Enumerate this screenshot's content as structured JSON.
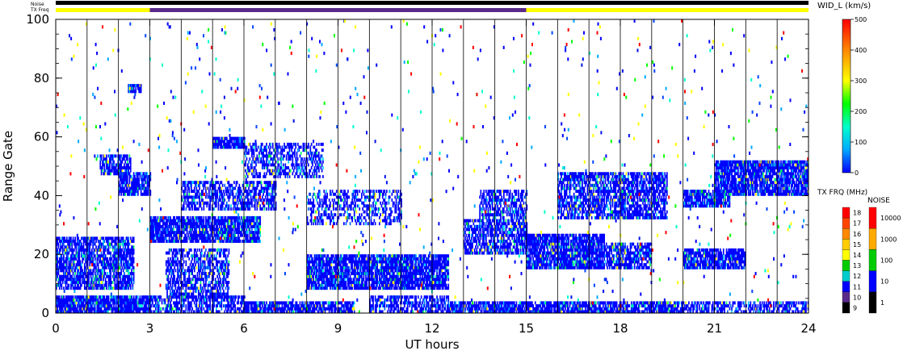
{
  "header": {
    "noise_label": "Noise",
    "txfreq_label": "TX Freq"
  },
  "top_bars": {
    "segments": [
      {
        "start": 0,
        "end": 3,
        "color": "#ffff00"
      },
      {
        "start": 3,
        "end": 15,
        "color": "#5a2a8a"
      },
      {
        "start": 15,
        "end": 24,
        "color": "#ffff00"
      }
    ],
    "noise_color": "#000000"
  },
  "chart_data": {
    "type": "heatmap",
    "xlabel": "UT hours",
    "ylabel": "Range Gate",
    "xlim": [
      0,
      24
    ],
    "ylim": [
      0,
      100
    ],
    "x_ticks": [
      0,
      3,
      6,
      9,
      12,
      15,
      18,
      21,
      24
    ],
    "x_tick_labels": [
      "0",
      "3",
      "6",
      "9",
      "12",
      "15",
      "18",
      "21",
      "24"
    ],
    "y_ticks": [
      0,
      20,
      40,
      60,
      80,
      100
    ],
    "y_tick_labels": [
      "0",
      "20",
      "40",
      "60",
      "80",
      "100"
    ],
    "scan_lines_every_hours": 1,
    "echo_bands": [
      {
        "x0": 0.0,
        "x1": 3.0,
        "y0": 0,
        "y1": 6,
        "density": 0.9
      },
      {
        "x0": 0.0,
        "x1": 2.5,
        "y0": 8,
        "y1": 26,
        "density": 0.75
      },
      {
        "x0": 1.4,
        "x1": 2.4,
        "y0": 47,
        "y1": 54,
        "density": 0.8
      },
      {
        "x0": 2.0,
        "x1": 3.0,
        "y0": 40,
        "y1": 48,
        "density": 0.8
      },
      {
        "x0": 2.3,
        "x1": 2.7,
        "y0": 75,
        "y1": 78,
        "density": 0.9
      },
      {
        "x0": 3.0,
        "x1": 6.5,
        "y0": 24,
        "y1": 33,
        "density": 0.85
      },
      {
        "x0": 3.0,
        "x1": 6.0,
        "y0": 0,
        "y1": 6,
        "density": 0.6
      },
      {
        "x0": 3.5,
        "x1": 5.5,
        "y0": 5,
        "y1": 22,
        "density": 0.6
      },
      {
        "x0": 4.0,
        "x1": 7.0,
        "y0": 35,
        "y1": 45,
        "density": 0.6
      },
      {
        "x0": 5.0,
        "x1": 6.0,
        "y0": 56,
        "y1": 60,
        "density": 0.9
      },
      {
        "x0": 6.0,
        "x1": 8.5,
        "y0": 46,
        "y1": 58,
        "density": 0.5
      },
      {
        "x0": 6.0,
        "x1": 9.5,
        "y0": 0,
        "y1": 4,
        "density": 0.85
      },
      {
        "x0": 8.0,
        "x1": 12.5,
        "y0": 8,
        "y1": 20,
        "density": 0.85
      },
      {
        "x0": 8.0,
        "x1": 11.0,
        "y0": 30,
        "y1": 42,
        "density": 0.4
      },
      {
        "x0": 10.0,
        "x1": 12.5,
        "y0": 0,
        "y1": 6,
        "density": 0.6
      },
      {
        "x0": 13.0,
        "x1": 15.0,
        "y0": 20,
        "y1": 32,
        "density": 0.7
      },
      {
        "x0": 13.5,
        "x1": 15.0,
        "y0": 32,
        "y1": 42,
        "density": 0.6
      },
      {
        "x0": 12.5,
        "x1": 15.0,
        "y0": 0,
        "y1": 4,
        "density": 0.85
      },
      {
        "x0": 15.0,
        "x1": 17.5,
        "y0": 15,
        "y1": 27,
        "density": 0.85
      },
      {
        "x0": 15.0,
        "x1": 20.0,
        "y0": 0,
        "y1": 4,
        "density": 0.85
      },
      {
        "x0": 16.0,
        "x1": 19.5,
        "y0": 32,
        "y1": 48,
        "density": 0.7
      },
      {
        "x0": 17.5,
        "x1": 19.0,
        "y0": 15,
        "y1": 24,
        "density": 0.7
      },
      {
        "x0": 20.0,
        "x1": 21.5,
        "y0": 36,
        "y1": 42,
        "density": 0.8
      },
      {
        "x0": 20.0,
        "x1": 22.0,
        "y0": 15,
        "y1": 22,
        "density": 0.8
      },
      {
        "x0": 21.0,
        "x1": 24.0,
        "y0": 40,
        "y1": 52,
        "density": 0.85
      },
      {
        "x0": 20.0,
        "x1": 24.0,
        "y0": 0,
        "y1": 4,
        "density": 0.6
      }
    ]
  },
  "colorbar_width": {
    "title": "WID_L (km/s)",
    "ticks": [
      0,
      100,
      200,
      300,
      400,
      500
    ],
    "tick_labels": [
      "0",
      "100",
      "200",
      "300",
      "400",
      "500"
    ],
    "stops": [
      "#0000ff",
      "#00aaff",
      "#00ffcc",
      "#00ff00",
      "#ffff00",
      "#ff8800",
      "#ff0000"
    ]
  },
  "colorbar_txfreq": {
    "title": "TX FRQ (MHz)",
    "labels": [
      "18",
      "17",
      "16",
      "15",
      "14",
      "13",
      "12",
      "11",
      "10",
      "9"
    ],
    "colors": [
      "#ff0000",
      "#ff4400",
      "#ff8800",
      "#ffcc00",
      "#ffff00",
      "#00cc00",
      "#00cccc",
      "#0000ff",
      "#5a2a8a",
      "#000000"
    ]
  },
  "colorbar_noise": {
    "title": "NOISE",
    "labels": [
      "10000",
      "1000",
      "100",
      "10",
      "1"
    ],
    "colors": [
      "#ff0000",
      "#ffaa00",
      "#00cc00",
      "#0000ff",
      "#000000"
    ]
  }
}
